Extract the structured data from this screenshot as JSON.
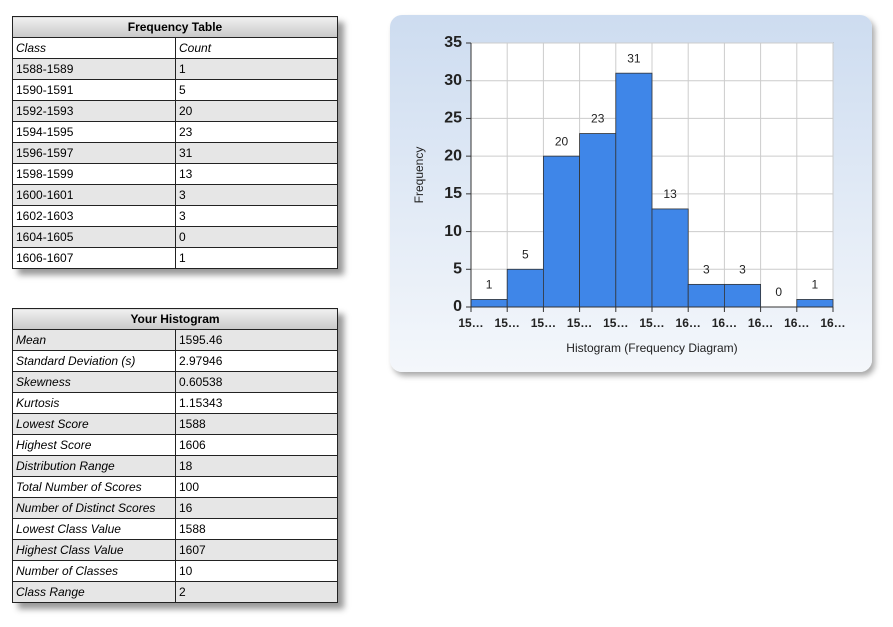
{
  "frequency_table": {
    "title": "Frequency Table",
    "columns": [
      "Class",
      "Count"
    ],
    "rows": [
      [
        "1588-1589",
        1
      ],
      [
        "1590-1591",
        5
      ],
      [
        "1592-1593",
        20
      ],
      [
        "1594-1595",
        23
      ],
      [
        "1596-1597",
        31
      ],
      [
        "1598-1599",
        13
      ],
      [
        "1600-1601",
        3
      ],
      [
        "1602-1603",
        3
      ],
      [
        "1604-1605",
        0
      ],
      [
        "1606-1607",
        1
      ]
    ]
  },
  "stats_table": {
    "title": "Your Histogram",
    "rows": [
      [
        "Mean",
        1595.46
      ],
      [
        "Standard Deviation (s)",
        2.97946
      ],
      [
        "Skewness",
        0.60538
      ],
      [
        "Kurtosis",
        1.15343
      ],
      [
        "Lowest Score",
        1588
      ],
      [
        "Highest Score",
        1606
      ],
      [
        "Distribution Range",
        18
      ],
      [
        "Total Number of Scores",
        100
      ],
      [
        "Number of Distinct Scores",
        16
      ],
      [
        "Lowest Class Value",
        1588
      ],
      [
        "Highest Class Value",
        1607
      ],
      [
        "Number of Classes",
        10
      ],
      [
        "Class Range",
        2
      ]
    ]
  },
  "chart_data": {
    "type": "histogram",
    "x_label": "Histogram (Frequency Diagram)",
    "y_label": "Frequency",
    "bins": [
      1588,
      1590,
      1592,
      1594,
      1596,
      1598,
      1600,
      1602,
      1604,
      1606,
      1608
    ],
    "values": [
      1,
      5,
      20,
      23,
      31,
      13,
      3,
      3,
      0,
      1
    ],
    "color": "#3f86e8",
    "xlim": [
      1588,
      1608
    ],
    "xticks": [
      {
        "value": 1588,
        "label": "15…"
      },
      {
        "value": 1590,
        "label": "15…"
      },
      {
        "value": 1592,
        "label": "15…"
      },
      {
        "value": 1594,
        "label": "15…"
      },
      {
        "value": 1596,
        "label": "15…"
      },
      {
        "value": 1598,
        "label": "15…"
      },
      {
        "value": 1600,
        "label": "16…"
      },
      {
        "value": 1602,
        "label": "16…"
      },
      {
        "value": 1604,
        "label": "16…"
      },
      {
        "value": 1606,
        "label": "16…"
      },
      {
        "value": 1608,
        "label": "16…"
      }
    ],
    "ylim": [
      0,
      35
    ],
    "yticks": [
      0,
      5,
      10,
      15,
      20,
      25,
      30,
      35
    ],
    "grid": true
  }
}
